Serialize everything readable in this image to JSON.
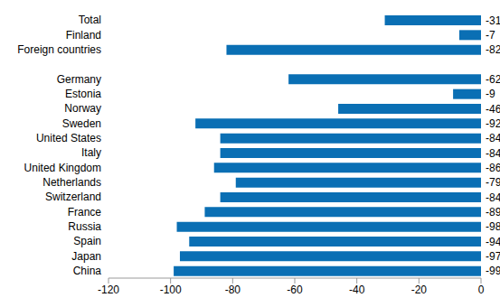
{
  "chart_data": {
    "type": "bar",
    "orientation": "horizontal",
    "categories": [
      "Total",
      "Finland",
      "Foreign countries",
      null,
      "Germany",
      "Estonia",
      "Norway",
      "Sweden",
      "United States",
      "Italy",
      "United Kingdom",
      "Netherlands",
      "Switzerland",
      "France",
      "Russia",
      "Spain",
      "Japan",
      "China"
    ],
    "values": [
      -31,
      -7,
      -82,
      null,
      -62,
      -9,
      -46,
      -92,
      -84,
      -84,
      -86,
      -79,
      -84,
      -89,
      -98,
      -94,
      -97,
      -99
    ],
    "color": "#0a6fb4",
    "xlim": [
      -120,
      0
    ],
    "xticks": [
      -120,
      -100,
      -80,
      -60,
      -40,
      -20,
      0
    ],
    "grid": false,
    "data_labels": true
  }
}
